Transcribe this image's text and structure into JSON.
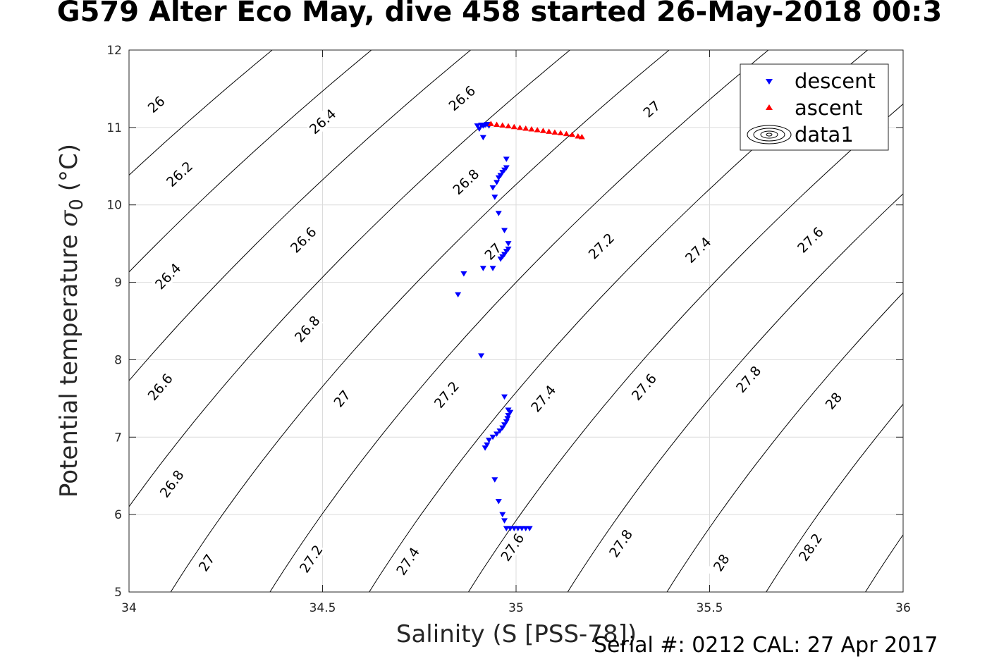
{
  "title": "G579 Alter Eco May, dive 458 started 26-May-2018 00:3",
  "footer": "Serial #: 0212  CAL: 27 Apr 2017",
  "chart_data": {
    "type": "scatter",
    "xlabel": "Salinity (S [PSS-78])",
    "ylabel_text": "Potential temperature",
    "ylabel_symbol": "σ",
    "ylabel_sub": "0",
    "ylabel_unit": "(°C)",
    "xlim": [
      34,
      36
    ],
    "ylim": [
      5,
      12
    ],
    "xticks": [
      34,
      34.5,
      35,
      35.5,
      36
    ],
    "xtick_labels": [
      "34",
      "34.5",
      "35",
      "35.5",
      "36"
    ],
    "yticks": [
      5,
      6,
      7,
      8,
      9,
      10,
      11,
      12
    ],
    "ytick_labels": [
      "5",
      "6",
      "7",
      "8",
      "9",
      "10",
      "11",
      "12"
    ],
    "grid": true,
    "legend_position": "top-right",
    "colors": {
      "descent": "#0000ff",
      "ascent": "#ff0000",
      "contour": "#000000",
      "grid": "#dcdcdc"
    },
    "contours": {
      "levels": [
        26.0,
        26.2,
        26.4,
        26.6,
        26.8,
        27.0,
        27.2,
        27.4,
        27.6,
        27.8,
        28.0,
        28.2
      ],
      "labels": [
        {
          "text": "26",
          "x": 34.07,
          "y": 11.3
        },
        {
          "text": "26.2",
          "x": 34.13,
          "y": 10.4
        },
        {
          "text": "26.4",
          "x": 34.5,
          "y": 11.08
        },
        {
          "text": "26.6",
          "x": 34.86,
          "y": 11.38
        },
        {
          "text": "27",
          "x": 35.35,
          "y": 11.24
        },
        {
          "text": "26.4",
          "x": 34.1,
          "y": 9.08
        },
        {
          "text": "26.6",
          "x": 34.45,
          "y": 9.55
        },
        {
          "text": "26.8",
          "x": 34.87,
          "y": 10.3
        },
        {
          "text": "27",
          "x": 34.94,
          "y": 9.4
        },
        {
          "text": "27.2",
          "x": 35.22,
          "y": 9.47
        },
        {
          "text": "27.4",
          "x": 35.47,
          "y": 9.42
        },
        {
          "text": "27.6",
          "x": 35.76,
          "y": 9.55
        },
        {
          "text": "26.8",
          "x": 34.46,
          "y": 8.4
        },
        {
          "text": "26.6",
          "x": 34.08,
          "y": 7.65
        },
        {
          "text": "27",
          "x": 34.55,
          "y": 7.5
        },
        {
          "text": "27.2",
          "x": 34.82,
          "y": 7.55
        },
        {
          "text": "27.4",
          "x": 35.07,
          "y": 7.5
        },
        {
          "text": "27.6",
          "x": 35.33,
          "y": 7.65
        },
        {
          "text": "27.8",
          "x": 35.6,
          "y": 7.75
        },
        {
          "text": "28",
          "x": 35.82,
          "y": 7.47
        },
        {
          "text": "26.8",
          "x": 34.11,
          "y": 6.4
        },
        {
          "text": "27",
          "x": 34.2,
          "y": 5.38
        },
        {
          "text": "27.2",
          "x": 34.47,
          "y": 5.43
        },
        {
          "text": "27.4",
          "x": 34.72,
          "y": 5.4
        },
        {
          "text": "27.6",
          "x": 34.99,
          "y": 5.58
        },
        {
          "text": "27.8",
          "x": 35.27,
          "y": 5.63
        },
        {
          "text": "28",
          "x": 35.53,
          "y": 5.38
        },
        {
          "text": "28.2",
          "x": 35.76,
          "y": 5.58
        }
      ]
    },
    "series": [
      {
        "name": "descent",
        "marker": "triangle-down",
        "points": [
          [
            34.9,
            11.02
          ],
          [
            34.905,
            10.98
          ],
          [
            34.91,
            11.03
          ],
          [
            34.915,
            11.02
          ],
          [
            34.92,
            11.03
          ],
          [
            34.925,
            11.04
          ],
          [
            34.93,
            11.02
          ],
          [
            34.915,
            10.87
          ],
          [
            34.975,
            10.59
          ],
          [
            34.975,
            10.48
          ],
          [
            34.97,
            10.45
          ],
          [
            34.965,
            10.42
          ],
          [
            34.96,
            10.38
          ],
          [
            34.955,
            10.35
          ],
          [
            34.95,
            10.29
          ],
          [
            34.94,
            10.22
          ],
          [
            34.945,
            10.1
          ],
          [
            34.955,
            9.89
          ],
          [
            34.97,
            9.67
          ],
          [
            34.98,
            9.5
          ],
          [
            34.98,
            9.43
          ],
          [
            34.975,
            9.4
          ],
          [
            34.97,
            9.36
          ],
          [
            34.965,
            9.33
          ],
          [
            34.96,
            9.3
          ],
          [
            34.94,
            9.18
          ],
          [
            34.915,
            9.18
          ],
          [
            34.865,
            9.11
          ],
          [
            34.85,
            8.84
          ],
          [
            34.91,
            8.05
          ],
          [
            34.97,
            7.52
          ],
          [
            34.98,
            7.35
          ],
          [
            34.985,
            7.32
          ],
          [
            34.98,
            7.28
          ],
          [
            34.978,
            7.24
          ],
          [
            34.975,
            7.2
          ],
          [
            34.97,
            7.16
          ],
          [
            34.965,
            7.12
          ],
          [
            34.958,
            7.08
          ],
          [
            34.95,
            7.04
          ],
          [
            34.94,
            7.0
          ],
          [
            34.93,
            6.96
          ],
          [
            34.925,
            6.9
          ],
          [
            34.92,
            6.86
          ],
          [
            34.945,
            6.45
          ],
          [
            34.955,
            6.17
          ],
          [
            34.965,
            6.0
          ],
          [
            34.97,
            5.92
          ],
          [
            34.975,
            5.82
          ],
          [
            34.985,
            5.82
          ],
          [
            34.995,
            5.82
          ],
          [
            35.005,
            5.82
          ],
          [
            35.015,
            5.82
          ],
          [
            35.025,
            5.82
          ],
          [
            35.035,
            5.82
          ]
        ]
      },
      {
        "name": "ascent",
        "marker": "triangle-up",
        "points": [
          [
            34.935,
            11.05
          ],
          [
            34.95,
            11.04
          ],
          [
            34.965,
            11.03
          ],
          [
            34.98,
            11.02
          ],
          [
            34.995,
            11.01
          ],
          [
            35.01,
            11.0
          ],
          [
            35.025,
            10.99
          ],
          [
            35.04,
            10.98
          ],
          [
            35.055,
            10.97
          ],
          [
            35.07,
            10.96
          ],
          [
            35.085,
            10.95
          ],
          [
            35.1,
            10.94
          ],
          [
            35.115,
            10.93
          ],
          [
            35.13,
            10.92
          ],
          [
            35.145,
            10.91
          ],
          [
            35.16,
            10.89
          ],
          [
            35.17,
            10.88
          ]
        ]
      },
      {
        "name": "data1",
        "marker": "contour"
      }
    ]
  }
}
